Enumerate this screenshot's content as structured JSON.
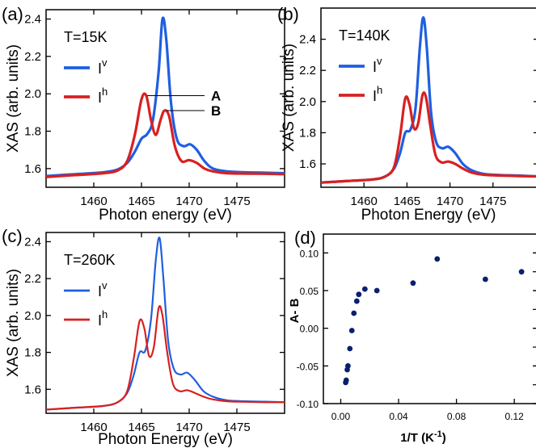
{
  "chart_data": [
    {
      "panel_label": "(a)",
      "type": "line",
      "annotation_temp": "T=15K",
      "xlabel": "Photon energy (eV)",
      "ylabel": "XAS (arb. units)",
      "xlim": [
        1455,
        1480
      ],
      "ylim": [
        1.5,
        2.45
      ],
      "x_ticks": [
        1460,
        1465,
        1470,
        1475
      ],
      "y_ticks": [
        1.6,
        1.8,
        2.0,
        2.2,
        2.4
      ],
      "series": [
        {
          "name": "I",
          "sup": "v",
          "color": "#1f5fe0",
          "width": 3.2,
          "x": [
            1455,
            1458,
            1461,
            1462.5,
            1463.5,
            1464.3,
            1465,
            1465.6,
            1466.2,
            1466.8,
            1467.2,
            1467.6,
            1468.1,
            1468.7,
            1469.4,
            1470.1,
            1470.8,
            1471.6,
            1472.5,
            1474,
            1476,
            1478,
            1480
          ],
          "y": [
            1.56,
            1.57,
            1.58,
            1.595,
            1.63,
            1.69,
            1.76,
            1.785,
            1.86,
            2.12,
            2.4,
            2.29,
            1.95,
            1.76,
            1.72,
            1.73,
            1.7,
            1.64,
            1.6,
            1.585,
            1.58,
            1.578,
            1.575
          ]
        },
        {
          "name": "I",
          "sup": "h",
          "color": "#d92020",
          "width": 3.2,
          "x": [
            1455,
            1458,
            1461,
            1462.5,
            1463.5,
            1464.3,
            1465.0,
            1465.5,
            1466.0,
            1466.5,
            1467.0,
            1467.4,
            1467.9,
            1468.5,
            1469.2,
            1470.0,
            1470.8,
            1471.6,
            1472.5,
            1474,
            1476,
            1478,
            1480
          ],
          "y": [
            1.555,
            1.565,
            1.575,
            1.59,
            1.64,
            1.78,
            1.97,
            1.99,
            1.86,
            1.78,
            1.86,
            1.91,
            1.88,
            1.72,
            1.64,
            1.645,
            1.63,
            1.6,
            1.585,
            1.575,
            1.573,
            1.572,
            1.57
          ]
        }
      ],
      "annotations": [
        {
          "text": "A",
          "target": [
            1465.6,
            1.99
          ],
          "label_y": 1.99
        },
        {
          "text": "B",
          "target": [
            1467.6,
            1.91
          ],
          "label_y": 1.91
        }
      ]
    },
    {
      "panel_label": "(b)",
      "type": "line",
      "annotation_temp": "T=140K",
      "xlabel": "Photon Energy (eV)",
      "ylabel": "XAS (arb. units)",
      "xlim": [
        1455,
        1480
      ],
      "ylim": [
        1.45,
        2.6
      ],
      "x_ticks": [
        1460,
        1465,
        1470,
        1475
      ],
      "y_ticks": [
        1.6,
        1.8,
        2.0,
        2.2,
        2.4
      ],
      "series": [
        {
          "name": "I",
          "sup": "v",
          "color": "#1f5fe0",
          "width": 3.2,
          "x": [
            1455,
            1458,
            1461,
            1462.5,
            1463.5,
            1464.2,
            1464.8,
            1465.4,
            1466.0,
            1466.5,
            1466.9,
            1467.3,
            1467.8,
            1468.4,
            1469.1,
            1469.8,
            1470.6,
            1471.5,
            1472.5,
            1474,
            1476,
            1478,
            1480
          ],
          "y": [
            1.48,
            1.49,
            1.5,
            1.52,
            1.57,
            1.67,
            1.8,
            1.82,
            1.96,
            2.35,
            2.54,
            2.35,
            1.93,
            1.74,
            1.7,
            1.71,
            1.67,
            1.6,
            1.56,
            1.535,
            1.528,
            1.525,
            1.52
          ]
        },
        {
          "name": "I",
          "sup": "h",
          "color": "#d92020",
          "width": 3.2,
          "x": [
            1455,
            1458,
            1461,
            1462.5,
            1463.5,
            1464.2,
            1464.8,
            1465.3,
            1465.8,
            1466.3,
            1466.8,
            1467.2,
            1467.7,
            1468.3,
            1469.0,
            1469.8,
            1470.6,
            1471.5,
            1472.5,
            1474,
            1476,
            1478,
            1480
          ],
          "y": [
            1.48,
            1.49,
            1.5,
            1.52,
            1.58,
            1.78,
            2.02,
            1.98,
            1.83,
            1.86,
            2.04,
            2.03,
            1.85,
            1.66,
            1.61,
            1.615,
            1.6,
            1.57,
            1.545,
            1.53,
            1.525,
            1.522,
            1.52
          ]
        }
      ]
    },
    {
      "panel_label": "(c)",
      "type": "line",
      "annotation_temp": "T=260K",
      "xlabel": "Photon Energy (eV)",
      "ylabel": "XAS (arb. units)",
      "xlim": [
        1455,
        1480
      ],
      "ylim": [
        1.47,
        2.45
      ],
      "x_ticks": [
        1460,
        1465,
        1470,
        1475
      ],
      "y_ticks": [
        1.6,
        1.8,
        2.0,
        2.2,
        2.4
      ],
      "series": [
        {
          "name": "I",
          "sup": "v",
          "color": "#1f5fe0",
          "width": 2.2,
          "x": [
            1455,
            1458,
            1461,
            1462.5,
            1463.5,
            1464.2,
            1464.8,
            1465.4,
            1466.0,
            1466.5,
            1466.9,
            1467.3,
            1467.8,
            1468.4,
            1469.1,
            1469.8,
            1470.6,
            1471.5,
            1472.5,
            1474,
            1476,
            1478,
            1480
          ],
          "y": [
            1.49,
            1.5,
            1.51,
            1.53,
            1.58,
            1.68,
            1.8,
            1.81,
            1.98,
            2.3,
            2.42,
            2.2,
            1.86,
            1.71,
            1.68,
            1.69,
            1.65,
            1.59,
            1.56,
            1.54,
            1.535,
            1.533,
            1.53
          ]
        },
        {
          "name": "I",
          "sup": "h",
          "color": "#d92020",
          "width": 2.2,
          "x": [
            1455,
            1458,
            1461,
            1462.5,
            1463.5,
            1464.2,
            1464.8,
            1465.3,
            1465.8,
            1466.3,
            1466.8,
            1467.2,
            1467.7,
            1468.3,
            1469.0,
            1469.8,
            1470.6,
            1471.5,
            1472.5,
            1474,
            1476,
            1478,
            1480
          ],
          "y": [
            1.49,
            1.5,
            1.51,
            1.53,
            1.59,
            1.77,
            1.97,
            1.93,
            1.78,
            1.83,
            2.04,
            2.0,
            1.8,
            1.63,
            1.59,
            1.595,
            1.58,
            1.56,
            1.545,
            1.535,
            1.532,
            1.53,
            1.53
          ]
        }
      ]
    },
    {
      "panel_label": "(d)",
      "type": "scatter",
      "xlabel": "1/T (K",
      "xlabel_sup": "-1",
      "xlabel_tail": ")",
      "ylabel": "A- B",
      "xlim": [
        -0.012,
        0.135
      ],
      "ylim": [
        -0.1,
        0.125
      ],
      "x_ticks": [
        0.0,
        0.04,
        0.08,
        0.12
      ],
      "x_tick_labels": [
        "0.00",
        "0.04",
        "0.08",
        "0.12"
      ],
      "y_ticks": [
        -0.1,
        -0.05,
        0.0,
        0.05,
        0.1
      ],
      "y_tick_labels": [
        "-0.10",
        "-0.05",
        "0.00",
        "0.05",
        "0.10"
      ],
      "series": [
        {
          "color": "#0a1f6e",
          "x": [
            0.0034,
            0.0038,
            0.0045,
            0.005,
            0.0063,
            0.0077,
            0.0091,
            0.0111,
            0.0125,
            0.0167,
            0.025,
            0.05,
            0.0667,
            0.1,
            0.125
          ],
          "y": [
            -0.072,
            -0.069,
            -0.055,
            -0.05,
            -0.027,
            -0.003,
            0.02,
            0.036,
            0.045,
            0.052,
            0.05,
            0.06,
            0.092,
            0.065,
            0.075
          ]
        }
      ]
    }
  ]
}
